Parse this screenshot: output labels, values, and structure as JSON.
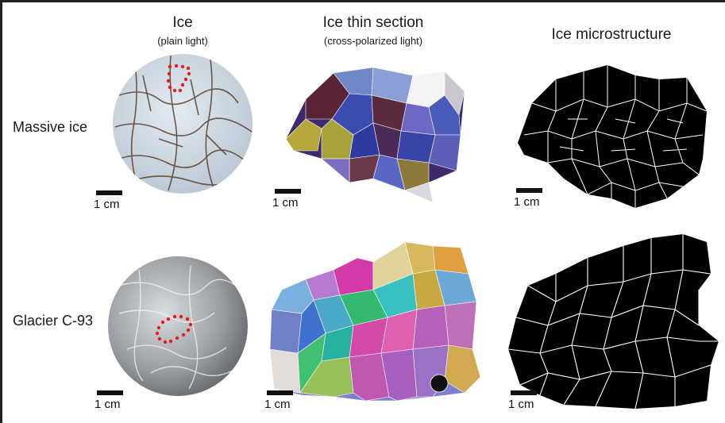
{
  "columns": [
    {
      "title": "Ice",
      "subtitle": "(plain light)"
    },
    {
      "title": "Ice thin section",
      "subtitle": "(cross-polarized light)"
    },
    {
      "title": "Ice microstructure",
      "subtitle": ""
    }
  ],
  "rows": [
    {
      "label": "Massive ice"
    },
    {
      "label": "Glacier C-93"
    }
  ],
  "scale_bar_label": "1 cm",
  "colors": {
    "outline_dots": "#e0201c",
    "microstructure_fill": "#000000",
    "grain_boundary": "#ffffff"
  }
}
